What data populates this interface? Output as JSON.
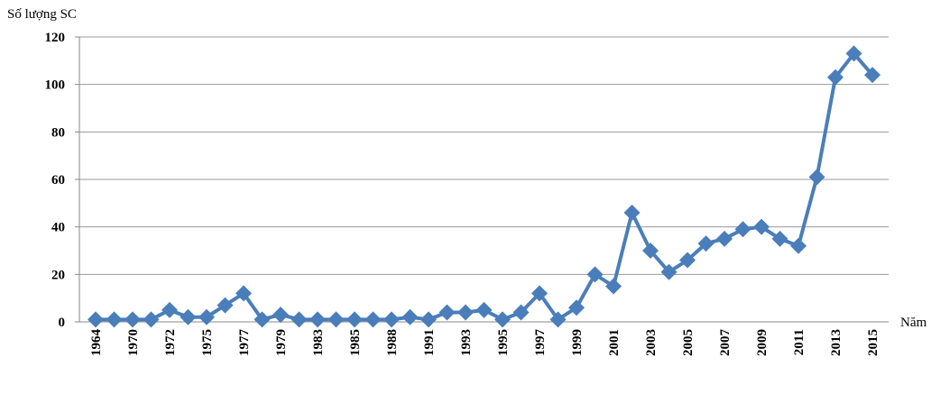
{
  "chart_data": {
    "type": "line",
    "y_label": "Số lượng SC",
    "x_label": "Năm",
    "categories": [
      "1964",
      null,
      "1970",
      null,
      "1972",
      null,
      "1975",
      null,
      "1977",
      null,
      "1979",
      null,
      "1983",
      null,
      "1985",
      null,
      "1988",
      null,
      "1991",
      null,
      "1993",
      null,
      "1995",
      null,
      "1997",
      null,
      "1999",
      null,
      "2001",
      null,
      "2003",
      null,
      "2005",
      null,
      "2007",
      null,
      "2009",
      null,
      "2011",
      null,
      "2013",
      null,
      "2015"
    ],
    "series": [
      {
        "name": "Số lượng SC",
        "color": "#4a7ebb",
        "values": [
          1,
          1,
          1,
          1,
          5,
          2,
          2,
          7,
          12,
          1,
          3,
          1,
          1,
          1,
          1,
          1,
          1,
          2,
          1,
          4,
          4,
          5,
          1,
          4,
          12,
          1,
          6,
          20,
          15,
          46,
          30,
          21,
          26,
          33,
          35,
          39,
          40,
          35,
          32,
          61,
          103,
          113,
          104
        ]
      }
    ],
    "ylim": [
      0,
      120
    ],
    "yticks": [
      0,
      20,
      40,
      60,
      80,
      100,
      120
    ],
    "grid": true
  }
}
